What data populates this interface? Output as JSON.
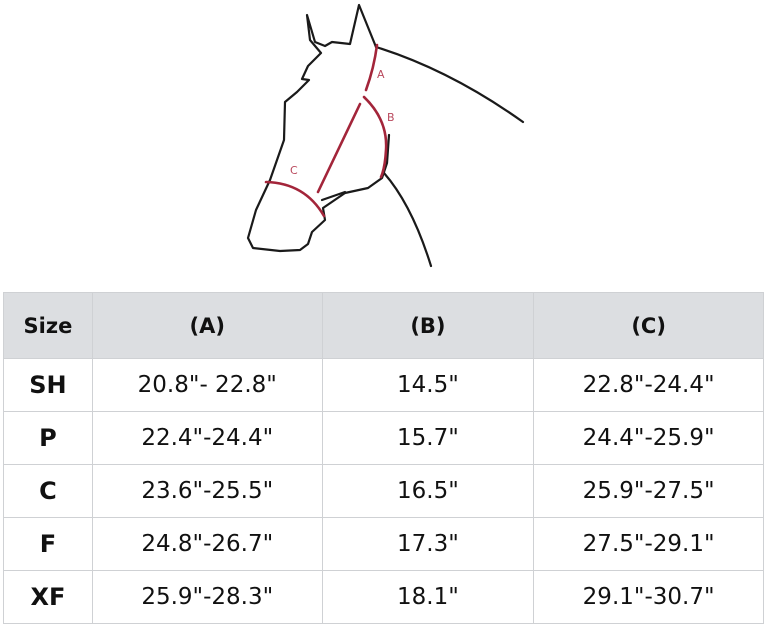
{
  "diagram": {
    "labels": {
      "a": "A",
      "b": "B",
      "c": "C"
    },
    "outline_color": "#1a1a1a",
    "measure_color": "#a3253a"
  },
  "table": {
    "headers": [
      "Size",
      "(A)",
      "(B)",
      "(C)"
    ],
    "rows": [
      [
        "SH",
        "20.8\"- 22.8\"",
        "14.5\"",
        "22.8\"-24.4\""
      ],
      [
        "P",
        "22.4\"-24.4\"",
        "15.7\"",
        "24.4\"-25.9\""
      ],
      [
        "C",
        "23.6\"-25.5\"",
        "16.5\"",
        "25.9\"-27.5\""
      ],
      [
        "F",
        "24.8\"-26.7\"",
        "17.3\"",
        "27.5\"-29.1\""
      ],
      [
        "XF",
        "25.9\"-28.3\"",
        "18.1\"",
        "29.1\"-30.7\""
      ]
    ]
  }
}
